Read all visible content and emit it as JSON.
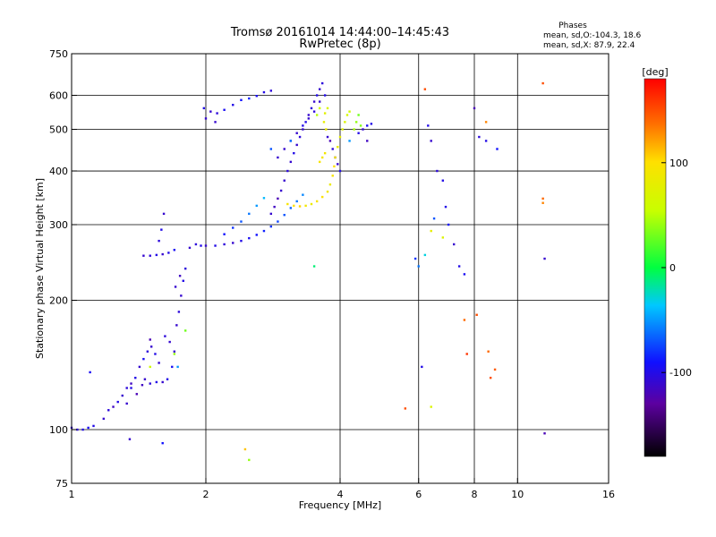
{
  "chart_data": {
    "type": "scatter",
    "title": "Tromsø 20161014 14:44:00–14:45:43",
    "subtitle": "RwPretec (8p)",
    "xlabel": "Frequency [MHz]",
    "ylabel": "Stationary phase Virtual Height [km]",
    "x_scale": "log",
    "y_scale": "log",
    "xlim": [
      1,
      16
    ],
    "ylim": [
      75,
      750
    ],
    "x_ticks": [
      {
        "value": 1,
        "label": "1"
      },
      {
        "value": 2,
        "label": "2"
      },
      {
        "value": 4,
        "label": "4"
      },
      {
        "value": 6,
        "label": "6"
      },
      {
        "value": 8,
        "label": "8"
      },
      {
        "value": 10,
        "label": "10"
      },
      {
        "value": 16,
        "label": "16"
      }
    ],
    "x_grid": [
      2,
      4,
      6,
      8,
      10
    ],
    "y_ticks": [
      {
        "value": 75,
        "label": "75"
      },
      {
        "value": 100,
        "label": "100"
      },
      {
        "value": 200,
        "label": "200"
      },
      {
        "value": 300,
        "label": "300"
      },
      {
        "value": 400,
        "label": "400"
      },
      {
        "value": 500,
        "label": "500"
      },
      {
        "value": 600,
        "label": "600"
      },
      {
        "value": 750,
        "label": "750"
      }
    ],
    "y_grid": [
      100,
      200,
      300,
      400,
      500,
      600
    ],
    "grid": true,
    "colorbar": {
      "label": "[deg]",
      "range": [
        -180,
        180
      ],
      "ticks": [
        {
          "value": 100,
          "label": "100"
        },
        {
          "value": 0,
          "label": "0"
        },
        {
          "value": -100,
          "label": "-100"
        }
      ]
    },
    "legend": {
      "title": "Phases",
      "line1": "mean, sd,O:-104.3, 18.6",
      "line2": "mean, sd,X:  87.9, 22.4"
    },
    "series": [
      {
        "mode": "O",
        "points": [
          [
            1.0,
            101,
            -110
          ],
          [
            1.03,
            100,
            -105
          ],
          [
            1.06,
            100,
            -100
          ],
          [
            1.09,
            101,
            -95
          ],
          [
            1.12,
            102,
            -100
          ],
          [
            1.1,
            136,
            -95
          ],
          [
            1.18,
            106,
            -110
          ],
          [
            1.21,
            111,
            -105
          ],
          [
            1.24,
            113,
            -115
          ],
          [
            1.27,
            116,
            -100
          ],
          [
            1.3,
            120,
            -110
          ],
          [
            1.33,
            125,
            -105
          ],
          [
            1.36,
            128,
            -115
          ],
          [
            1.39,
            132,
            -100
          ],
          [
            1.42,
            140,
            -110
          ],
          [
            1.45,
            146,
            -95
          ],
          [
            1.48,
            152,
            -105
          ],
          [
            1.51,
            156,
            -110
          ],
          [
            1.54,
            150,
            -100
          ],
          [
            1.57,
            143,
            -110
          ],
          [
            1.4,
            121,
            -120
          ],
          [
            1.44,
            127,
            -115
          ],
          [
            1.46,
            131,
            -110
          ],
          [
            1.5,
            128,
            -105
          ],
          [
            1.55,
            129,
            -100
          ],
          [
            1.6,
            129,
            -110
          ],
          [
            1.64,
            131,
            -100
          ],
          [
            1.68,
            140,
            -95
          ],
          [
            1.7,
            152,
            -110
          ],
          [
            1.66,
            160,
            -110
          ],
          [
            1.5,
            162,
            -120
          ],
          [
            1.62,
            165,
            -105
          ],
          [
            1.36,
            125,
            -100
          ],
          [
            1.33,
            115,
            -110
          ],
          [
            1.73,
            140,
            -50
          ],
          [
            1.72,
            175,
            -110
          ],
          [
            1.74,
            188,
            -105
          ],
          [
            1.76,
            205,
            -110
          ],
          [
            1.78,
            222,
            -100
          ],
          [
            1.8,
            237,
            -105
          ],
          [
            1.75,
            228,
            -115
          ],
          [
            1.71,
            215,
            -110
          ],
          [
            1.45,
            254,
            -110
          ],
          [
            1.5,
            254,
            -105
          ],
          [
            1.55,
            255,
            -100
          ],
          [
            1.6,
            256,
            -110
          ],
          [
            1.65,
            258,
            -100
          ],
          [
            1.7,
            262,
            -95
          ],
          [
            1.57,
            275,
            -105
          ],
          [
            1.59,
            292,
            -100
          ],
          [
            1.61,
            318,
            -110
          ],
          [
            1.84,
            265,
            -110
          ],
          [
            1.9,
            270,
            -105
          ],
          [
            1.95,
            268,
            -100
          ],
          [
            2.0,
            268,
            -110
          ],
          [
            2.1,
            268,
            -100
          ],
          [
            2.2,
            270,
            -105
          ],
          [
            2.3,
            272,
            -110
          ],
          [
            2.4,
            275,
            -100
          ],
          [
            2.5,
            279,
            -95
          ],
          [
            2.6,
            284,
            -90
          ],
          [
            2.7,
            290,
            -85
          ],
          [
            2.8,
            297,
            -80
          ],
          [
            2.9,
            305,
            -75
          ],
          [
            3.0,
            316,
            -70
          ],
          [
            3.1,
            328,
            -65
          ],
          [
            3.2,
            340,
            -60
          ],
          [
            3.3,
            352,
            -55
          ],
          [
            2.2,
            285,
            -90
          ],
          [
            2.3,
            295,
            -80
          ],
          [
            2.4,
            305,
            -70
          ],
          [
            2.5,
            318,
            -60
          ],
          [
            2.6,
            332,
            -50
          ],
          [
            2.7,
            346,
            -40
          ],
          [
            1.98,
            560,
            -100
          ],
          [
            2.05,
            550,
            -110
          ],
          [
            2.12,
            545,
            -105
          ],
          [
            2.2,
            555,
            -95
          ],
          [
            2.3,
            570,
            -100
          ],
          [
            2.4,
            585,
            -90
          ],
          [
            2.5,
            590,
            -85
          ],
          [
            2.6,
            598,
            -95
          ],
          [
            2.7,
            610,
            -100
          ],
          [
            2.8,
            615,
            -105
          ],
          [
            2.1,
            520,
            -110
          ],
          [
            2.0,
            530,
            -110
          ],
          [
            2.9,
            430,
            -110
          ],
          [
            3.0,
            450,
            -110
          ],
          [
            3.1,
            470,
            -105
          ],
          [
            3.2,
            490,
            -110
          ],
          [
            3.3,
            510,
            -100
          ],
          [
            3.4,
            530,
            -110
          ],
          [
            3.5,
            550,
            -105
          ],
          [
            3.6,
            580,
            -110
          ],
          [
            3.7,
            600,
            -100
          ],
          [
            3.0,
            380,
            -110
          ],
          [
            3.05,
            400,
            -105
          ],
          [
            3.1,
            420,
            -110
          ],
          [
            3.15,
            440,
            -100
          ],
          [
            3.2,
            460,
            -110
          ],
          [
            3.25,
            480,
            -105
          ],
          [
            3.3,
            500,
            -110
          ],
          [
            3.35,
            520,
            -100
          ],
          [
            3.4,
            540,
            -110
          ],
          [
            3.45,
            560,
            -105
          ],
          [
            3.5,
            580,
            -110
          ],
          [
            3.55,
            600,
            -100
          ],
          [
            3.6,
            620,
            -110
          ],
          [
            3.65,
            640,
            -105
          ],
          [
            2.95,
            360,
            -110
          ],
          [
            2.9,
            345,
            -120
          ],
          [
            2.85,
            330,
            -115
          ],
          [
            2.8,
            318,
            -110
          ],
          [
            3.75,
            480,
            -110
          ],
          [
            3.8,
            470,
            -120
          ],
          [
            3.85,
            450,
            -105
          ],
          [
            3.9,
            430,
            -115
          ],
          [
            3.95,
            415,
            -110
          ],
          [
            4.0,
            400,
            -100
          ],
          [
            4.4,
            490,
            -100
          ],
          [
            4.5,
            500,
            -110
          ],
          [
            4.6,
            510,
            -95
          ],
          [
            4.7,
            515,
            -100
          ],
          [
            4.6,
            470,
            -115
          ],
          [
            6.3,
            510,
            -100
          ],
          [
            6.4,
            470,
            -110
          ],
          [
            6.6,
            400,
            -105
          ],
          [
            6.8,
            380,
            -100
          ],
          [
            6.9,
            330,
            -100
          ],
          [
            7.0,
            300,
            -90
          ],
          [
            7.2,
            270,
            -110
          ],
          [
            7.4,
            240,
            -100
          ],
          [
            7.6,
            230,
            -95
          ],
          [
            8.0,
            560,
            -120
          ],
          [
            8.2,
            480,
            -105
          ],
          [
            8.5,
            470,
            -100
          ],
          [
            9.0,
            450,
            -90
          ],
          [
            11.5,
            250,
            -110
          ],
          [
            11.5,
            98,
            -120
          ],
          [
            6.1,
            140,
            -100
          ],
          [
            5.9,
            250,
            -80
          ],
          [
            1.35,
            95,
            -110
          ],
          [
            1.6,
            93,
            -90
          ],
          [
            2.8,
            450,
            -70
          ],
          [
            3.1,
            470,
            -60
          ],
          [
            4.2,
            470,
            -50
          ],
          [
            6.0,
            240,
            -60
          ],
          [
            6.2,
            255,
            -30
          ],
          [
            6.5,
            310,
            -70
          ]
        ]
      },
      {
        "mode": "X",
        "points": [
          [
            3.05,
            335,
            95
          ],
          [
            3.15,
            332,
            100
          ],
          [
            3.25,
            331,
            105
          ],
          [
            3.35,
            332,
            90
          ],
          [
            3.45,
            335,
            85
          ],
          [
            3.55,
            340,
            95
          ],
          [
            3.65,
            348,
            100
          ],
          [
            3.75,
            358,
            90
          ],
          [
            3.8,
            372,
            85
          ],
          [
            3.85,
            390,
            95
          ],
          [
            3.88,
            410,
            100
          ],
          [
            3.9,
            430,
            90
          ],
          [
            3.95,
            455,
            85
          ],
          [
            4.0,
            480,
            80
          ],
          [
            4.05,
            500,
            75
          ],
          [
            4.1,
            520,
            70
          ],
          [
            4.15,
            540,
            65
          ],
          [
            4.2,
            550,
            60
          ],
          [
            3.7,
            440,
            90
          ],
          [
            3.6,
            420,
            95
          ],
          [
            3.65,
            430,
            92
          ],
          [
            3.72,
            500,
            85
          ],
          [
            3.68,
            520,
            80
          ],
          [
            3.7,
            545,
            75
          ],
          [
            3.75,
            560,
            70
          ],
          [
            3.6,
            560,
            60
          ],
          [
            3.55,
            540,
            50
          ],
          [
            4.3,
            500,
            45
          ],
          [
            4.35,
            520,
            40
          ],
          [
            4.4,
            540,
            30
          ],
          [
            4.45,
            510,
            35
          ],
          [
            6.2,
            620,
            150
          ],
          [
            8.1,
            185,
            150
          ],
          [
            7.6,
            180,
            140
          ],
          [
            7.7,
            150,
            160
          ],
          [
            8.6,
            152,
            140
          ],
          [
            8.7,
            132,
            150
          ],
          [
            8.9,
            138,
            145
          ],
          [
            5.6,
            112,
            150
          ],
          [
            6.4,
            113,
            70
          ],
          [
            2.45,
            90,
            110
          ],
          [
            2.5,
            85,
            40
          ],
          [
            1.5,
            140,
            60
          ],
          [
            1.7,
            150,
            40
          ],
          [
            1.8,
            170,
            30
          ],
          [
            11.4,
            640,
            150
          ],
          [
            11.4,
            345,
            140
          ],
          [
            11.4,
            337,
            130
          ],
          [
            8.5,
            520,
            130
          ],
          [
            6.4,
            290,
            80
          ],
          [
            6.8,
            280,
            70
          ],
          [
            3.5,
            240,
            -10
          ]
        ]
      }
    ]
  }
}
